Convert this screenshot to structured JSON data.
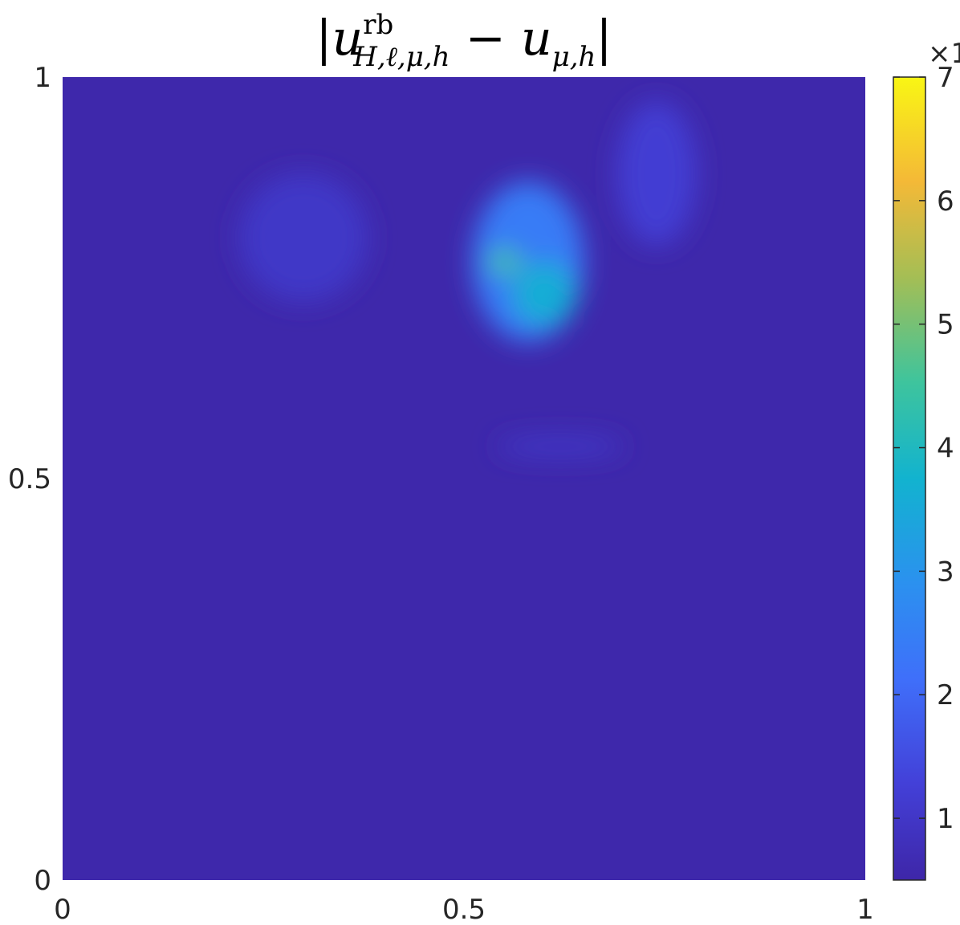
{
  "chart_data": {
    "type": "heatmap",
    "title": {
      "bar_left": "|",
      "var": "u",
      "sup": "rb",
      "sub": "H,ℓ,μ,h",
      "minus": " − ",
      "var2": "u",
      "sub2": "μ,h",
      "bar_right": "|"
    },
    "xlim": [
      0,
      1
    ],
    "ylim": [
      0,
      1
    ],
    "x_ticks": [
      "0",
      "0.5",
      "1"
    ],
    "y_ticks": [
      "0",
      "0.5",
      "1"
    ],
    "colorbar": {
      "range": [
        0.5,
        7
      ],
      "ticks": [
        "1",
        "2",
        "3",
        "4",
        "5",
        "6",
        "7"
      ],
      "exponent_label": "×1",
      "colormap": "parula"
    },
    "field": {
      "background_value": 0.55,
      "features": [
        {
          "x": 0.3,
          "y": 0.8,
          "sx": 0.08,
          "sy": 0.08,
          "value": 1.0
        },
        {
          "x": 0.74,
          "y": 0.88,
          "sx": 0.05,
          "sy": 0.09,
          "value": 1.2
        },
        {
          "x": 0.58,
          "y": 0.77,
          "sx": 0.07,
          "sy": 0.1,
          "value": 2.4
        },
        {
          "x": 0.6,
          "y": 0.73,
          "sx": 0.04,
          "sy": 0.04,
          "value": 3.6
        },
        {
          "x": 0.55,
          "y": 0.77,
          "sx": 0.02,
          "sy": 0.015,
          "value": 4.6
        },
        {
          "x": 0.62,
          "y": 0.54,
          "sx": 0.08,
          "sy": 0.012,
          "value": 1.0
        }
      ]
    }
  }
}
